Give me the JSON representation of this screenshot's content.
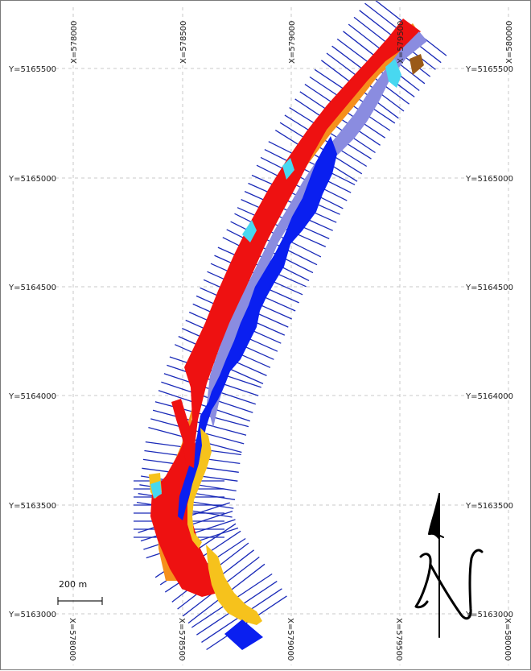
{
  "map": {
    "x_grid_labels": [
      "X=578000",
      "X=578500",
      "X=579000",
      "X=579500",
      "X=580000"
    ],
    "y_grid_labels": [
      "Y=5165500",
      "Y=5165000",
      "Y=5164500",
      "Y=5164000",
      "Y=5163500",
      "Y=5163000"
    ],
    "scale_bar_label": "200 m",
    "colors": {
      "deep": "#0a1ff0",
      "lavender": "#8a8ce0",
      "red": "#ee1111",
      "orange": "#f5901c",
      "yellow": "#f6c21c",
      "cyan": "#48d8f0",
      "brown": "#9a5a18",
      "transect": "#1a2ab8",
      "grid": "#c8c8c8"
    }
  }
}
